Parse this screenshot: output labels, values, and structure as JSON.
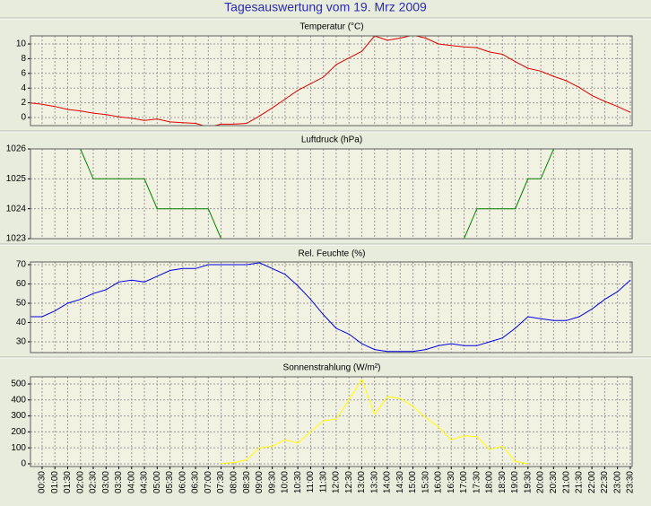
{
  "title": "Tagesauswertung vom 19. Mrz 2009",
  "chart_data": [
    {
      "type": "line",
      "title": "Temperatur (°C)",
      "color": "#e00000",
      "grid": true,
      "ylim": [
        -1.1,
        11.1
      ],
      "yticks": [
        0,
        2,
        4,
        6,
        8,
        10
      ],
      "values": [
        2.0,
        1.8,
        1.5,
        1.1,
        0.9,
        0.6,
        0.4,
        0.1,
        -0.1,
        -0.4,
        -0.2,
        -0.6,
        -0.7,
        -0.8,
        -1.3,
        -0.9,
        -0.9,
        -0.8,
        0.2,
        1.3,
        2.5,
        3.7,
        4.6,
        5.5,
        7.2,
        8.1,
        9.0,
        11.1,
        10.5,
        10.8,
        11.2,
        10.8,
        10.0,
        9.8,
        9.6,
        9.5,
        8.9,
        8.6,
        7.6,
        6.7,
        6.3,
        5.6,
        5.0,
        4.1,
        3.0,
        2.2,
        1.5,
        0.7
      ]
    },
    {
      "type": "line",
      "title": "Luftdruck (hPa)",
      "color": "#008000",
      "grid": true,
      "ylim": [
        1023,
        1026
      ],
      "yticks": [
        1023,
        1024,
        1025,
        1026
      ],
      "values": [
        1026,
        1026,
        1026,
        1026,
        1026,
        1025,
        1025,
        1025,
        1025,
        1025,
        1024,
        1024,
        1024,
        1024,
        1024,
        1023,
        1023,
        1023,
        1023,
        1023,
        1023,
        1023,
        1023,
        1023,
        1023,
        1023,
        1023,
        1023,
        1023,
        1023,
        1023,
        1023,
        1023,
        1023,
        1023,
        1024,
        1024,
        1024,
        1024,
        1025,
        1025,
        1026,
        1026,
        1026,
        1026,
        1026,
        1026,
        1026
      ]
    },
    {
      "type": "line",
      "title": "Rel. Feuchte (%)",
      "color": "#0000e0",
      "grid": true,
      "ylim": [
        24.4,
        71.4
      ],
      "yticks": [
        30,
        40,
        50,
        60,
        70
      ],
      "values": [
        43,
        43,
        46,
        50,
        52,
        55,
        57,
        61,
        62,
        61,
        64,
        67,
        68,
        68,
        70,
        70,
        70,
        70,
        71,
        68,
        65,
        59,
        52,
        44,
        37,
        34,
        29,
        26,
        25,
        25,
        25,
        26,
        28,
        29,
        28,
        28,
        30,
        32,
        37,
        43,
        42,
        41,
        41,
        43,
        47,
        52,
        56,
        62
      ]
    },
    {
      "type": "line",
      "title": "Sonnenstrahlung (W/m²)",
      "color": "#ffff00",
      "grid": true,
      "ylim": [
        -17,
        545
      ],
      "yticks": [
        0,
        100,
        200,
        300,
        400,
        500
      ],
      "categories": [
        null,
        "00:30",
        "01:00",
        "01:30",
        "02:00",
        "02:30",
        "03:00",
        "03:30",
        "04:00",
        "04:30",
        "05:00",
        "05:30",
        "06:00",
        "06:30",
        "07:00",
        "07:30",
        "08:00",
        "08:30",
        "09:00",
        "09:30",
        "10:00",
        "10:30",
        "11:00",
        "11:30",
        "12:00",
        "12:30",
        "13:00",
        "13:30",
        "14:00",
        "14:30",
        "15:00",
        "15:30",
        "16:00",
        "16:30",
        "17:00",
        "17:30",
        "18:00",
        "18:30",
        "19:00",
        "19:30",
        "20:00",
        "20:30",
        "21:00",
        "21:30",
        "22:00",
        "22:30",
        "23:00",
        "23:30"
      ],
      "values": [
        null,
        null,
        null,
        null,
        null,
        null,
        null,
        null,
        null,
        null,
        null,
        null,
        null,
        null,
        null,
        2,
        8,
        25,
        100,
        110,
        150,
        130,
        200,
        270,
        280,
        400,
        530,
        310,
        420,
        410,
        360,
        290,
        230,
        150,
        175,
        170,
        90,
        110,
        15,
        0,
        null,
        null,
        null,
        null,
        null,
        null,
        null,
        null
      ]
    }
  ]
}
